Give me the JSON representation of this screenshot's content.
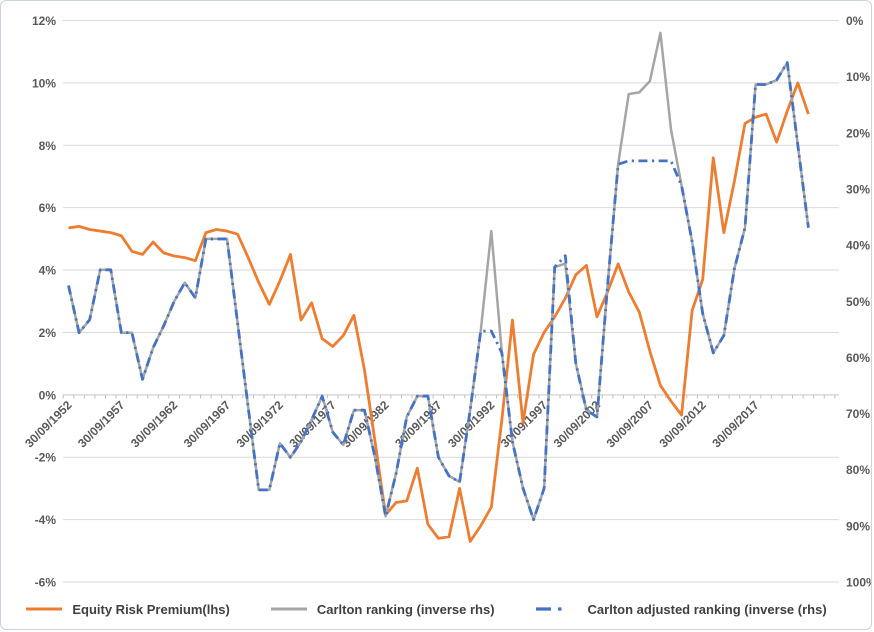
{
  "chart_data": {
    "type": "line",
    "title": "",
    "grid": true,
    "legend_position": "bottom",
    "x_years": [
      1952,
      1953,
      1954,
      1955,
      1956,
      1957,
      1958,
      1959,
      1960,
      1961,
      1962,
      1963,
      1964,
      1965,
      1966,
      1967,
      1968,
      1969,
      1970,
      1971,
      1972,
      1973,
      1974,
      1975,
      1976,
      1977,
      1978,
      1979,
      1980,
      1981,
      1982,
      1983,
      1984,
      1985,
      1986,
      1987,
      1988,
      1989,
      1990,
      1991,
      1992,
      1993,
      1994,
      1995,
      1996,
      1997,
      1998,
      1999,
      2000,
      2001,
      2002,
      2003,
      2004,
      2005,
      2006,
      2007,
      2008,
      2009,
      2010,
      2011,
      2012,
      2013,
      2014,
      2015,
      2016,
      2017,
      2018,
      2019,
      2020,
      2021,
      2022
    ],
    "x_tick_labels": [
      "30/09/1952",
      "30/09/1957",
      "30/09/1962",
      "30/09/1967",
      "30/09/1972",
      "30/09/1977",
      "30/09/1982",
      "30/09/1987",
      "30/09/1992",
      "30/09/1997",
      "30/09/2002",
      "30/09/2007",
      "30/09/2012",
      "30/09/2017"
    ],
    "left_axis": {
      "min": -6,
      "max": 12,
      "step": 2,
      "unit": "%",
      "tick_labels": [
        "12%",
        "10%",
        "8%",
        "6%",
        "4%",
        "2%",
        "0%",
        "-2%",
        "-4%",
        "-6%"
      ]
    },
    "right_axis": {
      "min": 0,
      "max": 100,
      "step": 10,
      "unit": "%",
      "inverted": true,
      "tick_labels": [
        "0%",
        "10%",
        "20%",
        "30%",
        "40%",
        "50%",
        "60%",
        "70%",
        "80%",
        "90%",
        "100%"
      ]
    },
    "colors": {
      "erp": "#ED7D31",
      "carlton": "#A5A5A5",
      "carlton_adjusted": "#4472C4",
      "gridline": "#D9D9D9",
      "axis_line": "#C6C6C6",
      "tick": "#BFBFBF"
    },
    "series": [
      {
        "name": "Equity Risk Premium(lhs)",
        "axis": "left",
        "color": "#ED7D31",
        "dash": "solid",
        "values": [
          5.35,
          5.4,
          5.3,
          5.25,
          5.2,
          5.1,
          4.6,
          4.5,
          4.9,
          4.55,
          4.45,
          4.4,
          4.3,
          5.2,
          5.3,
          5.25,
          5.15,
          4.4,
          3.6,
          2.9,
          3.65,
          4.5,
          2.4,
          2.95,
          1.8,
          1.55,
          1.9,
          2.55,
          0.8,
          -1.5,
          -3.85,
          -3.45,
          -3.4,
          -2.35,
          -4.15,
          -4.6,
          -4.55,
          -3.0,
          -4.7,
          -4.2,
          -3.6,
          -0.8,
          2.4,
          -0.9,
          1.3,
          2.0,
          2.5,
          3.1,
          3.85,
          4.15,
          2.5,
          3.3,
          4.2,
          3.3,
          2.65,
          1.4,
          0.3,
          -0.2,
          -0.65,
          2.7,
          3.7,
          7.6,
          5.2,
          6.85,
          8.7,
          8.9,
          9.0,
          8.1,
          9.1,
          10.0,
          9.0
        ]
      },
      {
        "name": "Carlton ranking (inverse rhs)",
        "axis": "right",
        "color": "#A5A5A5",
        "dash": "solid",
        "values": [
          47.2,
          55.6,
          53.3,
          44.4,
          44.4,
          55.6,
          55.6,
          63.9,
          58.3,
          54.4,
          50.0,
          46.7,
          49.4,
          38.9,
          38.9,
          38.9,
          53.9,
          68.9,
          83.6,
          83.6,
          75.3,
          77.8,
          75.0,
          71.1,
          66.9,
          73.3,
          75.6,
          69.4,
          69.4,
          77.8,
          88.3,
          80.6,
          70.6,
          66.9,
          66.9,
          77.8,
          81.1,
          82.2,
          69.4,
          55.3,
          37.5,
          59.2,
          75.0,
          83.3,
          88.9,
          83.3,
          43.9,
          43.3,
          61.1,
          69.4,
          70.6,
          47.2,
          25.6,
          13.1,
          12.8,
          10.8,
          2.2,
          19.4,
          29.4,
          39.4,
          52.2,
          59.2,
          56.1,
          44.2,
          36.9,
          11.4,
          11.4,
          10.6,
          7.5,
          22.2,
          36.9
        ]
      },
      {
        "name": "Carlton adjusted ranking (inverse (rhs)",
        "axis": "right",
        "color": "#4472C4",
        "dash": "dash-dot",
        "values": [
          47.2,
          55.6,
          53.3,
          44.4,
          44.4,
          55.6,
          55.6,
          63.9,
          58.3,
          54.4,
          50.0,
          46.7,
          49.4,
          38.9,
          38.9,
          38.9,
          53.9,
          68.9,
          83.6,
          83.6,
          75.3,
          77.8,
          75.0,
          71.1,
          66.9,
          73.3,
          75.6,
          69.4,
          69.4,
          77.8,
          88.3,
          80.6,
          70.6,
          66.9,
          66.9,
          77.8,
          81.1,
          82.2,
          69.4,
          55.3,
          55.3,
          59.2,
          75.0,
          83.3,
          88.9,
          83.3,
          43.9,
          41.9,
          61.1,
          69.4,
          70.6,
          47.2,
          25.6,
          25.0,
          25.0,
          25.0,
          25.0,
          25.0,
          29.4,
          39.4,
          52.2,
          59.2,
          56.1,
          44.2,
          36.9,
          11.4,
          11.4,
          10.6,
          7.5,
          22.2,
          36.9
        ]
      }
    ]
  }
}
